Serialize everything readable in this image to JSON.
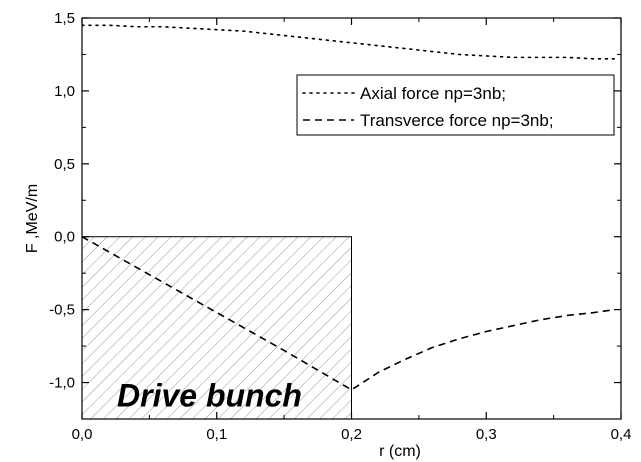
{
  "chart_data": {
    "type": "line",
    "title": "",
    "xlabel": "r (cm)",
    "ylabel": "F ,MeV/m",
    "xlim": [
      0.0,
      0.4
    ],
    "ylim": [
      -1.25,
      1.5
    ],
    "x_ticks": [
      {
        "value": 0.0,
        "label": "0,0"
      },
      {
        "value": 0.1,
        "label": "0,1"
      },
      {
        "value": 0.2,
        "label": "0,2"
      },
      {
        "value": 0.3,
        "label": "0,3"
      },
      {
        "value": 0.4,
        "label": "0,4"
      }
    ],
    "y_ticks": [
      {
        "value": 1.5,
        "label": "1,5"
      },
      {
        "value": 1.0,
        "label": "1,0"
      },
      {
        "value": 0.5,
        "label": "0,5"
      },
      {
        "value": 0.0,
        "label": "0,0"
      },
      {
        "value": -0.5,
        "label": "-0,5"
      },
      {
        "value": -1.0,
        "label": "-1,0"
      }
    ],
    "grid": false,
    "legend_position": "top-right",
    "series": [
      {
        "name": "Axial force np=3nb;",
        "style": "dotted",
        "color": "#000000",
        "x": [
          0.0,
          0.02,
          0.04,
          0.06,
          0.08,
          0.1,
          0.12,
          0.14,
          0.16,
          0.18,
          0.2,
          0.22,
          0.24,
          0.26,
          0.28,
          0.3,
          0.32,
          0.34,
          0.36,
          0.38,
          0.395
        ],
        "y": [
          1.45,
          1.45,
          1.44,
          1.44,
          1.43,
          1.42,
          1.41,
          1.39,
          1.37,
          1.35,
          1.33,
          1.31,
          1.29,
          1.27,
          1.25,
          1.24,
          1.23,
          1.23,
          1.23,
          1.22,
          1.22
        ]
      },
      {
        "name": "Transverce force np=3nb;",
        "style": "dashed",
        "color": "#000000",
        "x": [
          0.0,
          0.05,
          0.1,
          0.15,
          0.2,
          0.2,
          0.22,
          0.24,
          0.26,
          0.28,
          0.3,
          0.32,
          0.34,
          0.36,
          0.38,
          0.395
        ],
        "y": [
          0.0,
          -0.26,
          -0.52,
          -0.78,
          -1.05,
          -1.05,
          -0.93,
          -0.84,
          -0.76,
          -0.7,
          -0.65,
          -0.61,
          -0.57,
          -0.54,
          -0.52,
          -0.5
        ]
      }
    ],
    "annotations": [
      {
        "text": "Drive bunch",
        "region": {
          "x": [
            0.0,
            0.2
          ],
          "y": [
            -1.25,
            0.0
          ]
        },
        "fill": "hatched"
      }
    ]
  }
}
